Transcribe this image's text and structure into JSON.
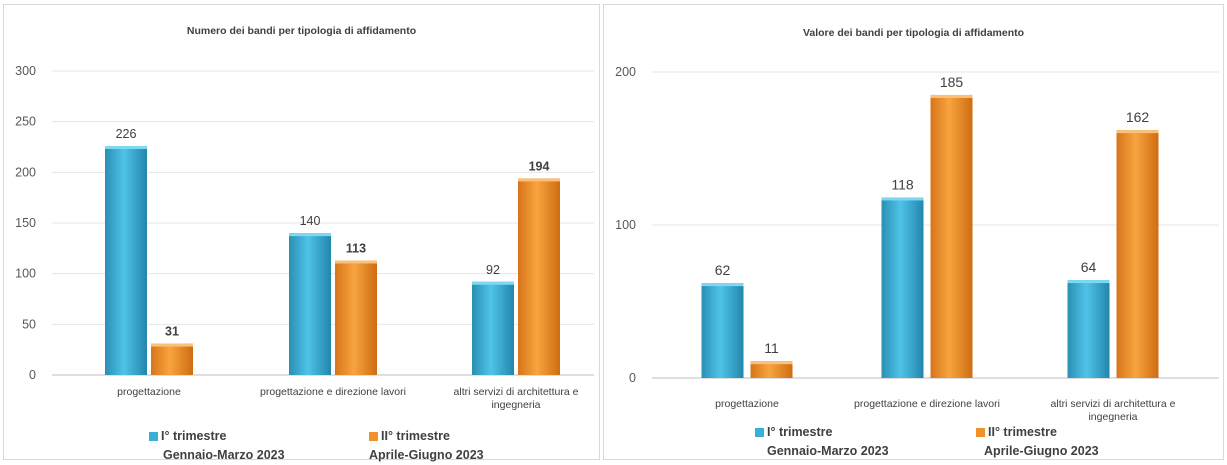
{
  "colors": {
    "series1": "#3ab0d6",
    "series2": "#f0922b",
    "grid": "#e6e6e6",
    "axis": "#595959"
  },
  "charts": [
    {
      "title": "Numero dei bandi per tipologia di affidamento",
      "legend": [
        {
          "name": "I° trimestre",
          "period": "Gennaio-Marzo 2023"
        },
        {
          "name": "II° trimestre",
          "period": "Aprile-Giugno 2023"
        }
      ]
    },
    {
      "title": "Valore dei bandi per tipologia di affidamento",
      "legend": [
        {
          "name": "I° trimestre",
          "period": "Gennaio-Marzo 2023"
        },
        {
          "name": "II° trimestre",
          "period": "Aprile-Giugno 2023"
        }
      ]
    }
  ],
  "chart_data": [
    {
      "type": "bar",
      "title": "Numero dei bandi per tipologia di affidamento",
      "categories": [
        [
          "progettazione"
        ],
        [
          "progettazione e direzione lavori"
        ],
        [
          "altri servizi di architettura e",
          "ingegneria"
        ]
      ],
      "series": [
        {
          "name": "I° trimestre",
          "values": [
            226,
            140,
            92
          ],
          "labels": [
            "226",
            "140",
            "92"
          ]
        },
        {
          "name": "II° trimestre",
          "values": [
            31,
            113,
            194
          ],
          "labels": [
            "31",
            "113",
            "194"
          ]
        }
      ],
      "ylim": [
        0,
        300
      ],
      "yticks": [
        0,
        50,
        100,
        150,
        200,
        250,
        300
      ],
      "grid": true,
      "legend_position": "bottom"
    },
    {
      "type": "bar",
      "title": "Valore dei bandi per tipologia di affidamento",
      "categories": [
        [
          "progettazione"
        ],
        [
          "progettazione e direzione lavori"
        ],
        [
          "altri servizi di architettura e",
          "ingegneria"
        ]
      ],
      "series": [
        {
          "name": "I° trimestre",
          "values": [
            62,
            118,
            64
          ],
          "labels": [
            "62",
            "118",
            "64"
          ]
        },
        {
          "name": "II° trimestre",
          "values": [
            11,
            185,
            162
          ],
          "labels": [
            "11",
            "185",
            "162"
          ]
        }
      ],
      "ylim": [
        0,
        200
      ],
      "yticks": [
        0,
        100,
        200
      ],
      "grid": true,
      "legend_position": "bottom"
    }
  ]
}
